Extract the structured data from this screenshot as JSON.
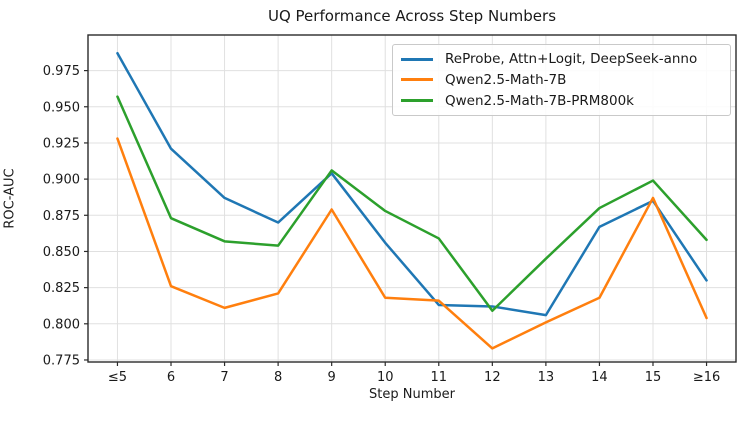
{
  "chart_data": {
    "type": "line",
    "title": "UQ Performance Across Step Numbers",
    "xlabel": "Step Number",
    "ylabel": "ROC-AUC",
    "categories": [
      "≤5",
      "6",
      "7",
      "8",
      "9",
      "10",
      "11",
      "12",
      "13",
      "14",
      "15",
      "≥16"
    ],
    "ytick_labels": [
      "0.775",
      "0.800",
      "0.825",
      "0.850",
      "0.875",
      "0.900",
      "0.925",
      "0.950",
      "0.975"
    ],
    "ylim": [
      0.7736,
      0.9996
    ],
    "grid": true,
    "legend_position": "upper right",
    "series": [
      {
        "name": "ReProbe, Attn+Logit, DeepSeek-anno",
        "color": "#1f77b4",
        "values": [
          0.987,
          0.921,
          0.887,
          0.87,
          0.904,
          0.856,
          0.813,
          0.812,
          0.806,
          0.867,
          0.885,
          0.83
        ]
      },
      {
        "name": "Qwen2.5-Math-7B",
        "color": "#ff7f0e",
        "values": [
          0.928,
          0.826,
          0.811,
          0.821,
          0.879,
          0.818,
          0.816,
          0.783,
          0.801,
          0.818,
          0.887,
          0.804
        ]
      },
      {
        "name": "Qwen2.5-Math-7B-PRM800k",
        "color": "#2ca02c",
        "values": [
          0.957,
          0.873,
          0.857,
          0.854,
          0.906,
          0.878,
          0.859,
          0.809,
          0.845,
          0.88,
          0.899,
          0.858
        ]
      }
    ]
  }
}
